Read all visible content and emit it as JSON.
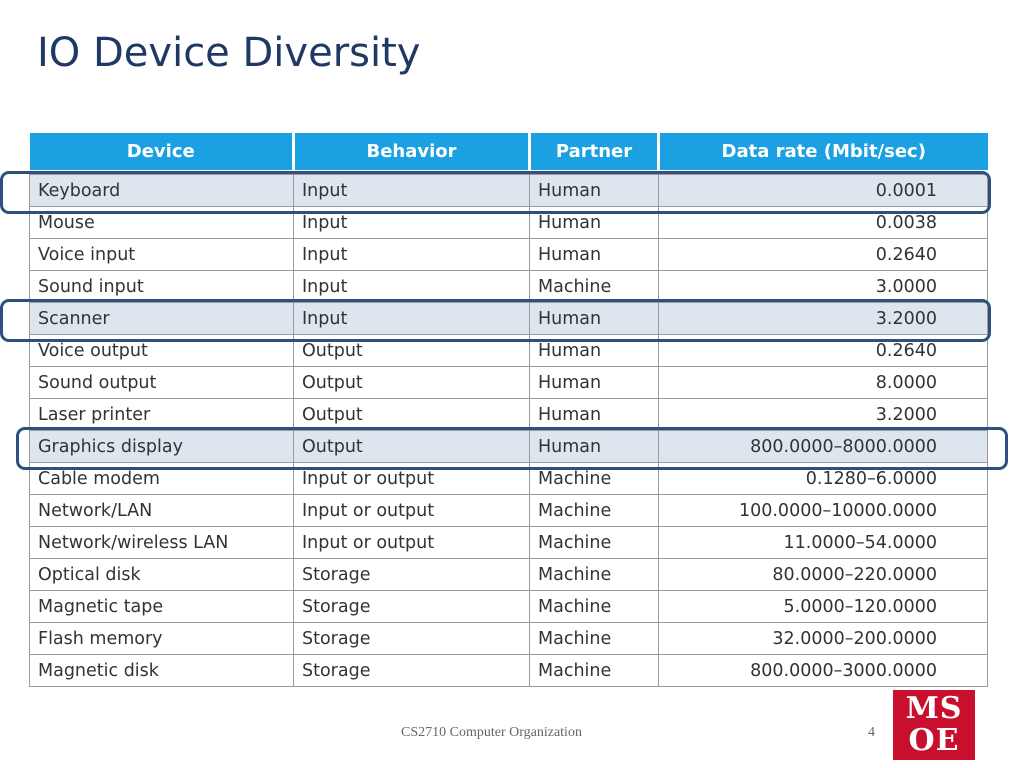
{
  "slide": {
    "title": "IO Device Diversity",
    "footer": "CS2710 Computer Organization",
    "page_number": "4",
    "logo_text": [
      "MS",
      "OE"
    ]
  },
  "table": {
    "headers": [
      "Device",
      "Behavior",
      "Partner",
      "Data rate (Mbit/sec)"
    ],
    "rows": [
      {
        "device": "Keyboard",
        "behavior": "Input",
        "partner": "Human",
        "rate": "0.0001",
        "highlighted": true
      },
      {
        "device": "Mouse",
        "behavior": "Input",
        "partner": "Human",
        "rate": "0.0038",
        "highlighted": false
      },
      {
        "device": "Voice input",
        "behavior": "Input",
        "partner": "Human",
        "rate": "0.2640",
        "highlighted": false
      },
      {
        "device": "Sound input",
        "behavior": "Input",
        "partner": "Machine",
        "rate": "3.0000",
        "highlighted": false
      },
      {
        "device": "Scanner",
        "behavior": "Input",
        "partner": "Human",
        "rate": "3.2000",
        "highlighted": true
      },
      {
        "device": "Voice output",
        "behavior": "Output",
        "partner": "Human",
        "rate": "0.2640",
        "highlighted": false
      },
      {
        "device": "Sound output",
        "behavior": "Output",
        "partner": "Human",
        "rate": "8.0000",
        "highlighted": false
      },
      {
        "device": "Laser printer",
        "behavior": "Output",
        "partner": "Human",
        "rate": "3.2000",
        "highlighted": false
      },
      {
        "device": "Graphics display",
        "behavior": "Output",
        "partner": "Human",
        "rate": "800.0000–8000.0000",
        "highlighted": true
      },
      {
        "device": "Cable modem",
        "behavior": "Input or output",
        "partner": "Machine",
        "rate": "0.1280–6.0000",
        "highlighted": false
      },
      {
        "device": "Network/LAN",
        "behavior": "Input or output",
        "partner": "Machine",
        "rate": "100.0000–10000.0000",
        "highlighted": false
      },
      {
        "device": "Network/wireless LAN",
        "behavior": "Input or output",
        "partner": "Machine",
        "rate": "11.0000–54.0000",
        "highlighted": false
      },
      {
        "device": "Optical disk",
        "behavior": "Storage",
        "partner": "Machine",
        "rate": "80.0000–220.0000",
        "highlighted": false
      },
      {
        "device": "Magnetic tape",
        "behavior": "Storage",
        "partner": "Machine",
        "rate": "5.0000–120.0000",
        "highlighted": false
      },
      {
        "device": "Flash memory",
        "behavior": "Storage",
        "partner": "Machine",
        "rate": "32.0000–200.0000",
        "highlighted": false
      },
      {
        "device": "Magnetic disk",
        "behavior": "Storage",
        "partner": "Machine",
        "rate": "800.0000–3000.0000",
        "highlighted": false
      }
    ]
  },
  "colors": {
    "header_bg": "#1ba1e2",
    "highlight_row_bg": "#dde5ef",
    "highlight_box": "#2e4f7f",
    "title": "#1f3864",
    "logo": "#c8102e"
  }
}
